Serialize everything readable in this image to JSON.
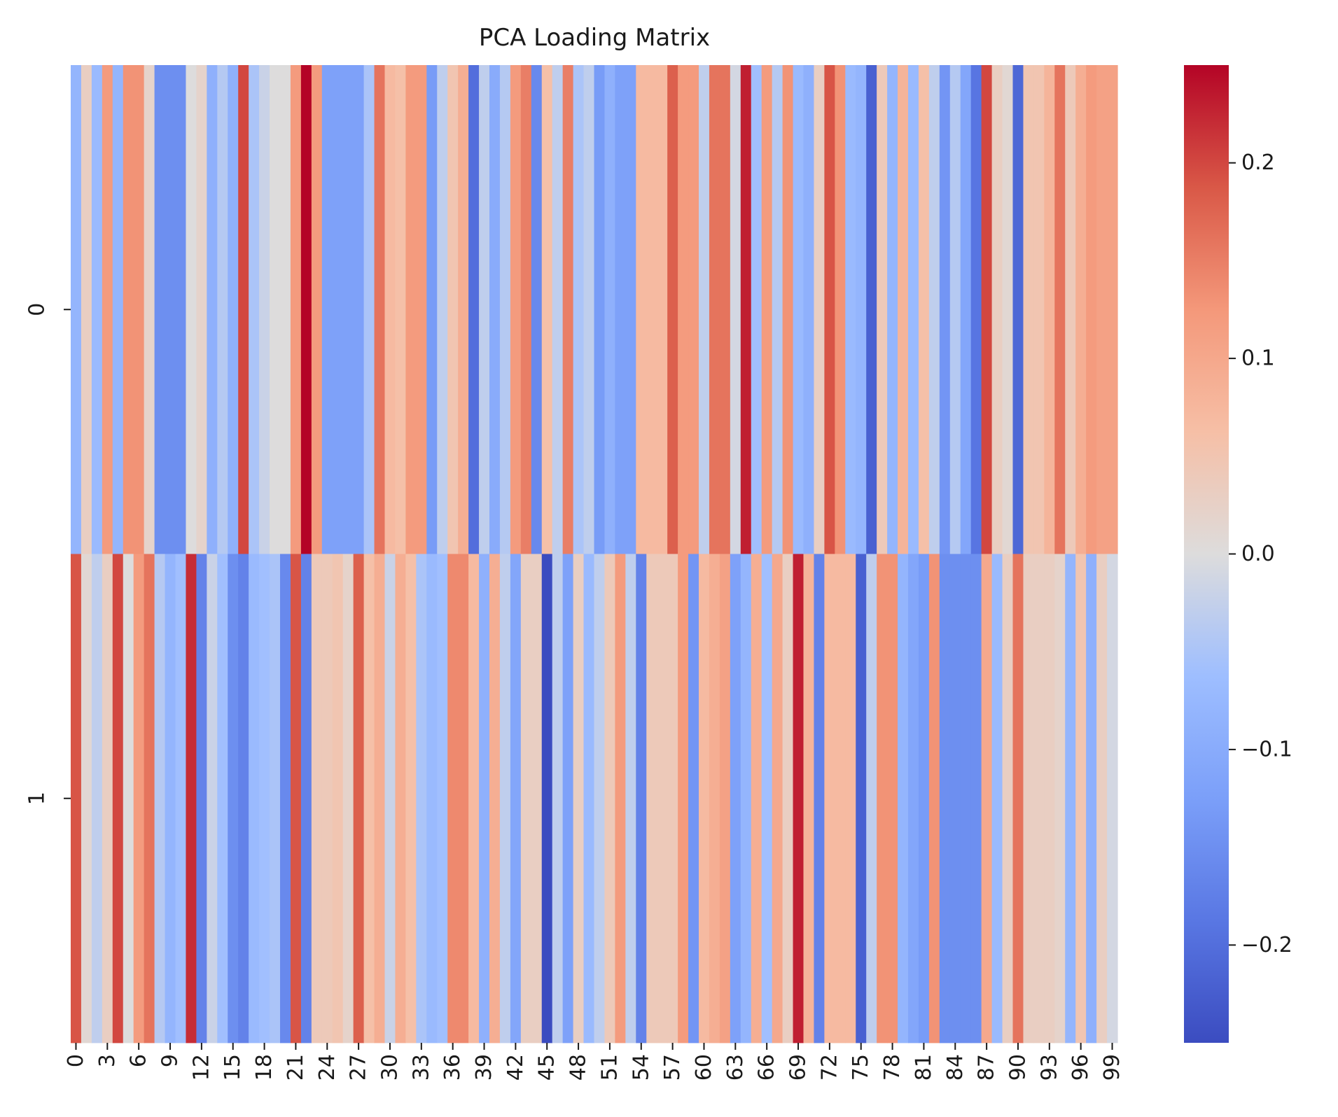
{
  "chart_data": {
    "type": "heatmap",
    "title": "PCA Loading Matrix",
    "xlabel": "",
    "ylabel": "",
    "rows": [
      0,
      1
    ],
    "columns_count": 100,
    "x_tick_labels": [
      "0",
      "3",
      "6",
      "9",
      "12",
      "15",
      "18",
      "21",
      "24",
      "27",
      "30",
      "33",
      "36",
      "39",
      "42",
      "45",
      "48",
      "51",
      "54",
      "57",
      "60",
      "63",
      "66",
      "69",
      "72",
      "75",
      "78",
      "81",
      "84",
      "87",
      "90",
      "93",
      "96",
      "99"
    ],
    "y_tick_labels": [
      "0",
      "1"
    ],
    "colormap": "coolwarm",
    "vmin": -0.25,
    "vmax": 0.25,
    "colorbar_ticks": [
      0.2,
      0.1,
      0.0,
      -0.1,
      -0.2
    ],
    "colorbar_tick_labels": [
      "0.2",
      "0.1",
      "0.0",
      "−0.1",
      "−0.2"
    ],
    "values": [
      [
        -0.08,
        0.03,
        -0.07,
        0.12,
        -0.08,
        0.13,
        0.13,
        0.02,
        -0.15,
        -0.15,
        -0.15,
        0.0,
        0.02,
        -0.09,
        -0.04,
        -0.09,
        0.2,
        -0.05,
        -0.02,
        0.0,
        0.0,
        0.12,
        0.25,
        0.12,
        -0.12,
        -0.12,
        -0.12,
        -0.12,
        -0.05,
        0.16,
        0.07,
        0.06,
        0.12,
        0.12,
        -0.13,
        -0.03,
        0.05,
        0.09,
        -0.2,
        -0.03,
        -0.1,
        -0.04,
        0.12,
        0.15,
        -0.16,
        0.06,
        -0.03,
        0.15,
        -0.05,
        -0.03,
        -0.13,
        -0.09,
        -0.12,
        -0.12,
        0.07,
        0.07,
        0.07,
        0.18,
        0.12,
        0.12,
        -0.03,
        0.16,
        0.16,
        -0.01,
        0.23,
        -0.06,
        0.12,
        -0.04,
        0.13,
        -0.07,
        -0.09,
        0.03,
        0.19,
        0.13,
        -0.07,
        -0.08,
        -0.22,
        0.04,
        -0.08,
        0.08,
        -0.07,
        0.06,
        -0.03,
        -0.14,
        -0.04,
        -0.11,
        -0.19,
        0.2,
        0.03,
        0.01,
        -0.21,
        0.05,
        0.05,
        0.08,
        0.16,
        0.04,
        0.09,
        0.12,
        0.11,
        0.11
      ],
      [
        0.19,
        0.01,
        -0.03,
        0.03,
        0.2,
        0.0,
        0.12,
        0.16,
        -0.04,
        -0.08,
        -0.06,
        0.22,
        -0.17,
        -0.02,
        -0.06,
        -0.15,
        -0.17,
        -0.07,
        -0.06,
        -0.05,
        -0.16,
        0.19,
        -0.17,
        0.04,
        0.04,
        0.05,
        0.02,
        0.18,
        0.06,
        0.09,
        -0.02,
        0.09,
        0.06,
        -0.05,
        -0.07,
        -0.06,
        0.14,
        0.14,
        0.07,
        -0.09,
        0.09,
        -0.03,
        -0.11,
        0.03,
        0.03,
        -0.25,
        -0.03,
        -0.12,
        0.03,
        -0.07,
        -0.03,
        0.04,
        0.12,
        -0.03,
        -0.17,
        0.04,
        0.04,
        0.04,
        0.12,
        -0.14,
        0.07,
        0.09,
        0.11,
        -0.12,
        -0.08,
        0.09,
        -0.06,
        0.1,
        0.03,
        0.23,
        0.08,
        -0.17,
        0.07,
        0.07,
        0.07,
        -0.22,
        -0.03,
        0.13,
        0.13,
        -0.08,
        -0.11,
        -0.13,
        0.13,
        -0.15,
        -0.15,
        -0.15,
        -0.15,
        0.1,
        -0.07,
        0.03,
        0.16,
        0.03,
        0.03,
        0.03,
        0.02,
        -0.08,
        0.05,
        -0.09,
        0.03,
        -0.01
      ]
    ]
  }
}
